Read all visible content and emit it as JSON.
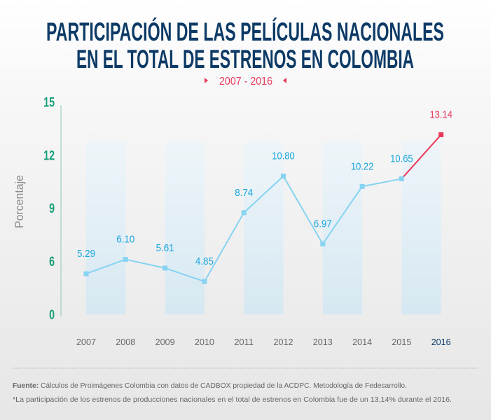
{
  "chart_data": {
    "type": "line",
    "title": [
      "PARTICIPACIÓN DE LAS PELÍCULAS NACIONALES",
      "EN EL TOTAL DE ESTRENOS EN COLOMBIA"
    ],
    "subtitle": "2007 - 2016",
    "ylabel": "Porcentaje",
    "xlabel": "",
    "yticks": [
      0,
      6,
      9,
      12,
      15
    ],
    "ylim": [
      0,
      15
    ],
    "y_axis_break": "between 0 and 6",
    "categories": [
      "2007",
      "2008",
      "2009",
      "2010",
      "2011",
      "2012",
      "2013",
      "2014",
      "2015",
      "2016"
    ],
    "values": [
      5.29,
      6.1,
      5.61,
      4.85,
      8.74,
      10.8,
      6.97,
      10.22,
      10.65,
      13.14
    ],
    "value_labels": [
      "5.29",
      "6.10",
      "5.61",
      "4.85",
      "8.74",
      "10.80",
      "6.97",
      "10.22",
      "10.65",
      "13.14"
    ],
    "highlight_category": "2016",
    "shaded_bands": [
      "2007-2008",
      "2009-2010",
      "2011-2012",
      "2013-2014",
      "2015-2016"
    ],
    "grid": false,
    "colors": {
      "title": "#0d3a66",
      "subtitle": "#e8395a",
      "line": "#86d3f2",
      "value_label": "#19a6df",
      "highlight": "#e8395a",
      "ytick": "#17a07a",
      "band": "#d9ebf4",
      "xtick": "#666666",
      "xtick_highlight": "#0d3a66"
    }
  },
  "footer": {
    "source_label": "Fuente:",
    "source_text": " Cálculos de Proimágenes Colombia con datos de CADBOX propiedad de la ACDPC. Metodología de Fedesarrollo.",
    "note": "*La participación de los estrenos de producciones nacionales en el total de estrenos en Colombia fue de un 13,14% durante el 2016."
  }
}
